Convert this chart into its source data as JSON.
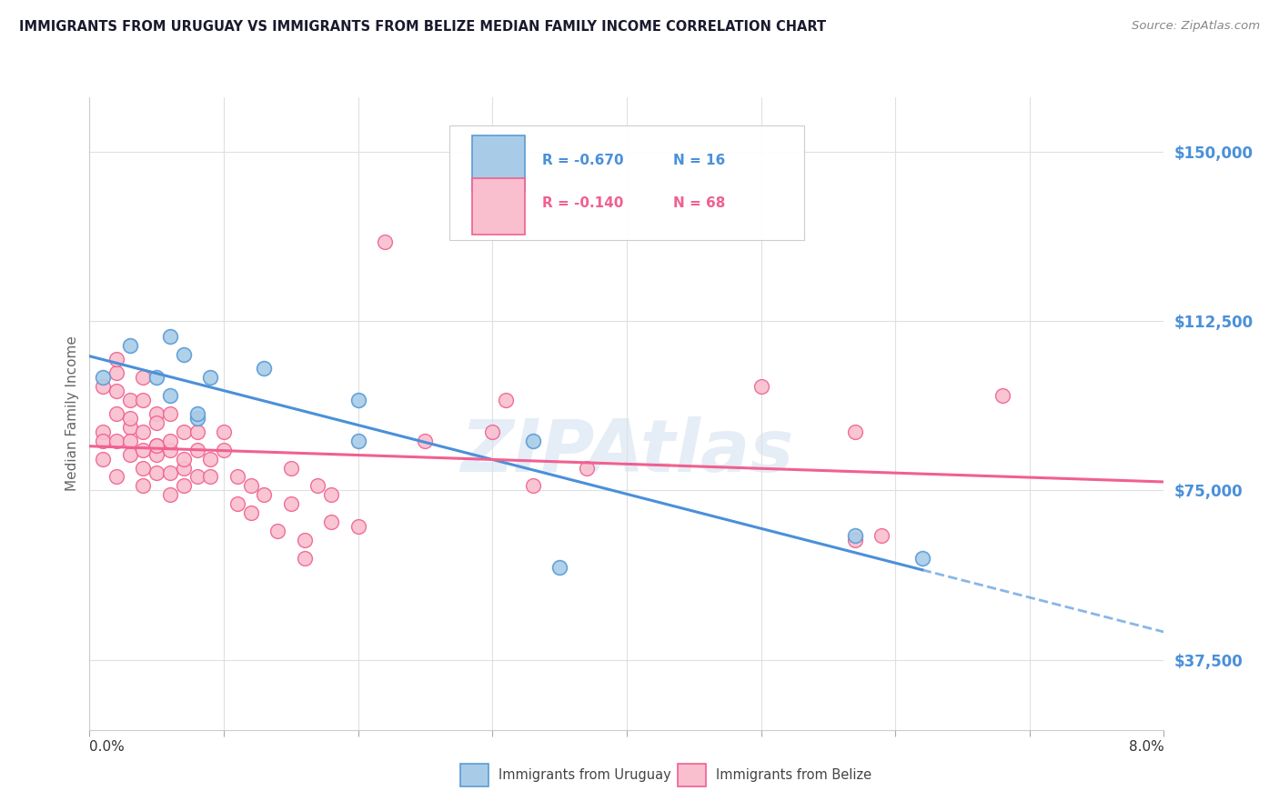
{
  "title": "IMMIGRANTS FROM URUGUAY VS IMMIGRANTS FROM BELIZE MEDIAN FAMILY INCOME CORRELATION CHART",
  "source": "Source: ZipAtlas.com",
  "ylabel": "Median Family Income",
  "yticks": [
    37500,
    75000,
    112500,
    150000
  ],
  "ytick_labels": [
    "$37,500",
    "$75,000",
    "$112,500",
    "$150,000"
  ],
  "xmin": 0.0,
  "xmax": 0.08,
  "ymin": 22000,
  "ymax": 162000,
  "color_uruguay": "#a8cce8",
  "color_belize": "#f9bfcf",
  "color_uruguay_edge": "#5b9bd5",
  "color_belize_edge": "#f06090",
  "color_uruguay_line": "#4a90d9",
  "color_belize_line": "#f06090",
  "color_ytick": "#4a90d9",
  "watermark": "ZIPAtlas",
  "uruguay_x": [
    0.001,
    0.003,
    0.005,
    0.006,
    0.006,
    0.007,
    0.008,
    0.008,
    0.009,
    0.013,
    0.02,
    0.02,
    0.033,
    0.035,
    0.057,
    0.062
  ],
  "uruguay_y": [
    100000,
    107000,
    100000,
    109000,
    96000,
    105000,
    91000,
    92000,
    100000,
    102000,
    95000,
    86000,
    86000,
    58000,
    65000,
    60000
  ],
  "belize_x": [
    0.001,
    0.001,
    0.001,
    0.001,
    0.002,
    0.002,
    0.002,
    0.002,
    0.002,
    0.002,
    0.003,
    0.003,
    0.003,
    0.003,
    0.003,
    0.004,
    0.004,
    0.004,
    0.004,
    0.004,
    0.004,
    0.005,
    0.005,
    0.005,
    0.005,
    0.005,
    0.005,
    0.006,
    0.006,
    0.006,
    0.006,
    0.006,
    0.007,
    0.007,
    0.007,
    0.007,
    0.008,
    0.008,
    0.008,
    0.009,
    0.009,
    0.01,
    0.01,
    0.011,
    0.011,
    0.012,
    0.012,
    0.013,
    0.014,
    0.015,
    0.015,
    0.016,
    0.016,
    0.017,
    0.018,
    0.018,
    0.02,
    0.022,
    0.025,
    0.03,
    0.031,
    0.033,
    0.037,
    0.05,
    0.057,
    0.057,
    0.059,
    0.068
  ],
  "belize_y": [
    88000,
    82000,
    98000,
    86000,
    97000,
    101000,
    104000,
    92000,
    78000,
    86000,
    95000,
    89000,
    83000,
    86000,
    91000,
    100000,
    95000,
    88000,
    80000,
    84000,
    76000,
    92000,
    85000,
    83000,
    90000,
    79000,
    85000,
    84000,
    92000,
    86000,
    79000,
    74000,
    88000,
    80000,
    82000,
    76000,
    88000,
    84000,
    78000,
    82000,
    78000,
    84000,
    88000,
    72000,
    78000,
    70000,
    76000,
    74000,
    66000,
    80000,
    72000,
    64000,
    60000,
    76000,
    68000,
    74000,
    67000,
    130000,
    86000,
    88000,
    95000,
    76000,
    80000,
    98000,
    64000,
    88000,
    65000,
    96000
  ]
}
